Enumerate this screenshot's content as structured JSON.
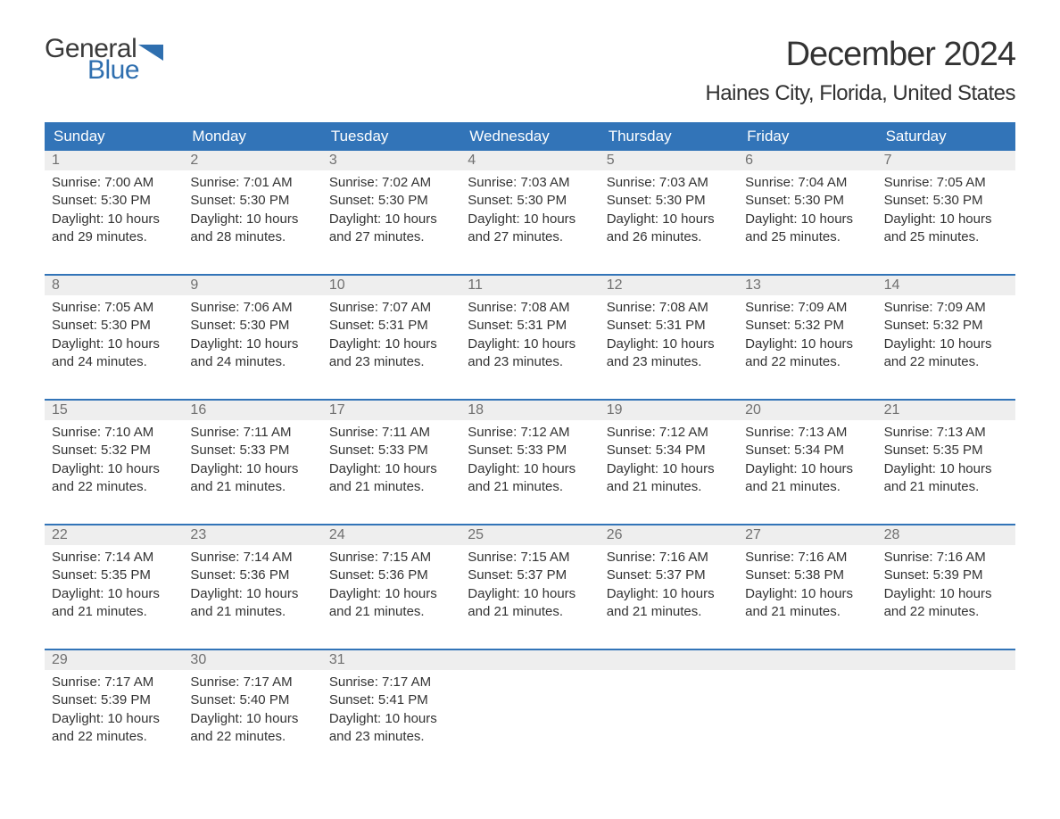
{
  "logo": {
    "word1": "General",
    "word2": "Blue",
    "word1_color": "#3a3a3a",
    "word2_color": "#2f6faf",
    "flag_color": "#2f6faf"
  },
  "title": "December 2024",
  "location": "Haines City, Florida, United States",
  "colors": {
    "header_bg": "#3274b8",
    "header_text": "#ffffff",
    "row_divider": "#3274b8",
    "daynum_bg": "#eeeeee",
    "daynum_text": "#707070",
    "body_text": "#333333",
    "page_bg": "#ffffff"
  },
  "weekdays": [
    "Sunday",
    "Monday",
    "Tuesday",
    "Wednesday",
    "Thursday",
    "Friday",
    "Saturday"
  ],
  "weeks": [
    [
      {
        "n": "1",
        "sunrise": "Sunrise: 7:00 AM",
        "sunset": "Sunset: 5:30 PM",
        "d1": "Daylight: 10 hours",
        "d2": "and 29 minutes."
      },
      {
        "n": "2",
        "sunrise": "Sunrise: 7:01 AM",
        "sunset": "Sunset: 5:30 PM",
        "d1": "Daylight: 10 hours",
        "d2": "and 28 minutes."
      },
      {
        "n": "3",
        "sunrise": "Sunrise: 7:02 AM",
        "sunset": "Sunset: 5:30 PM",
        "d1": "Daylight: 10 hours",
        "d2": "and 27 minutes."
      },
      {
        "n": "4",
        "sunrise": "Sunrise: 7:03 AM",
        "sunset": "Sunset: 5:30 PM",
        "d1": "Daylight: 10 hours",
        "d2": "and 27 minutes."
      },
      {
        "n": "5",
        "sunrise": "Sunrise: 7:03 AM",
        "sunset": "Sunset: 5:30 PM",
        "d1": "Daylight: 10 hours",
        "d2": "and 26 minutes."
      },
      {
        "n": "6",
        "sunrise": "Sunrise: 7:04 AM",
        "sunset": "Sunset: 5:30 PM",
        "d1": "Daylight: 10 hours",
        "d2": "and 25 minutes."
      },
      {
        "n": "7",
        "sunrise": "Sunrise: 7:05 AM",
        "sunset": "Sunset: 5:30 PM",
        "d1": "Daylight: 10 hours",
        "d2": "and 25 minutes."
      }
    ],
    [
      {
        "n": "8",
        "sunrise": "Sunrise: 7:05 AM",
        "sunset": "Sunset: 5:30 PM",
        "d1": "Daylight: 10 hours",
        "d2": "and 24 minutes."
      },
      {
        "n": "9",
        "sunrise": "Sunrise: 7:06 AM",
        "sunset": "Sunset: 5:30 PM",
        "d1": "Daylight: 10 hours",
        "d2": "and 24 minutes."
      },
      {
        "n": "10",
        "sunrise": "Sunrise: 7:07 AM",
        "sunset": "Sunset: 5:31 PM",
        "d1": "Daylight: 10 hours",
        "d2": "and 23 minutes."
      },
      {
        "n": "11",
        "sunrise": "Sunrise: 7:08 AM",
        "sunset": "Sunset: 5:31 PM",
        "d1": "Daylight: 10 hours",
        "d2": "and 23 minutes."
      },
      {
        "n": "12",
        "sunrise": "Sunrise: 7:08 AM",
        "sunset": "Sunset: 5:31 PM",
        "d1": "Daylight: 10 hours",
        "d2": "and 23 minutes."
      },
      {
        "n": "13",
        "sunrise": "Sunrise: 7:09 AM",
        "sunset": "Sunset: 5:32 PM",
        "d1": "Daylight: 10 hours",
        "d2": "and 22 minutes."
      },
      {
        "n": "14",
        "sunrise": "Sunrise: 7:09 AM",
        "sunset": "Sunset: 5:32 PM",
        "d1": "Daylight: 10 hours",
        "d2": "and 22 minutes."
      }
    ],
    [
      {
        "n": "15",
        "sunrise": "Sunrise: 7:10 AM",
        "sunset": "Sunset: 5:32 PM",
        "d1": "Daylight: 10 hours",
        "d2": "and 22 minutes."
      },
      {
        "n": "16",
        "sunrise": "Sunrise: 7:11 AM",
        "sunset": "Sunset: 5:33 PM",
        "d1": "Daylight: 10 hours",
        "d2": "and 21 minutes."
      },
      {
        "n": "17",
        "sunrise": "Sunrise: 7:11 AM",
        "sunset": "Sunset: 5:33 PM",
        "d1": "Daylight: 10 hours",
        "d2": "and 21 minutes."
      },
      {
        "n": "18",
        "sunrise": "Sunrise: 7:12 AM",
        "sunset": "Sunset: 5:33 PM",
        "d1": "Daylight: 10 hours",
        "d2": "and 21 minutes."
      },
      {
        "n": "19",
        "sunrise": "Sunrise: 7:12 AM",
        "sunset": "Sunset: 5:34 PM",
        "d1": "Daylight: 10 hours",
        "d2": "and 21 minutes."
      },
      {
        "n": "20",
        "sunrise": "Sunrise: 7:13 AM",
        "sunset": "Sunset: 5:34 PM",
        "d1": "Daylight: 10 hours",
        "d2": "and 21 minutes."
      },
      {
        "n": "21",
        "sunrise": "Sunrise: 7:13 AM",
        "sunset": "Sunset: 5:35 PM",
        "d1": "Daylight: 10 hours",
        "d2": "and 21 minutes."
      }
    ],
    [
      {
        "n": "22",
        "sunrise": "Sunrise: 7:14 AM",
        "sunset": "Sunset: 5:35 PM",
        "d1": "Daylight: 10 hours",
        "d2": "and 21 minutes."
      },
      {
        "n": "23",
        "sunrise": "Sunrise: 7:14 AM",
        "sunset": "Sunset: 5:36 PM",
        "d1": "Daylight: 10 hours",
        "d2": "and 21 minutes."
      },
      {
        "n": "24",
        "sunrise": "Sunrise: 7:15 AM",
        "sunset": "Sunset: 5:36 PM",
        "d1": "Daylight: 10 hours",
        "d2": "and 21 minutes."
      },
      {
        "n": "25",
        "sunrise": "Sunrise: 7:15 AM",
        "sunset": "Sunset: 5:37 PM",
        "d1": "Daylight: 10 hours",
        "d2": "and 21 minutes."
      },
      {
        "n": "26",
        "sunrise": "Sunrise: 7:16 AM",
        "sunset": "Sunset: 5:37 PM",
        "d1": "Daylight: 10 hours",
        "d2": "and 21 minutes."
      },
      {
        "n": "27",
        "sunrise": "Sunrise: 7:16 AM",
        "sunset": "Sunset: 5:38 PM",
        "d1": "Daylight: 10 hours",
        "d2": "and 21 minutes."
      },
      {
        "n": "28",
        "sunrise": "Sunrise: 7:16 AM",
        "sunset": "Sunset: 5:39 PM",
        "d1": "Daylight: 10 hours",
        "d2": "and 22 minutes."
      }
    ],
    [
      {
        "n": "29",
        "sunrise": "Sunrise: 7:17 AM",
        "sunset": "Sunset: 5:39 PM",
        "d1": "Daylight: 10 hours",
        "d2": "and 22 minutes."
      },
      {
        "n": "30",
        "sunrise": "Sunrise: 7:17 AM",
        "sunset": "Sunset: 5:40 PM",
        "d1": "Daylight: 10 hours",
        "d2": "and 22 minutes."
      },
      {
        "n": "31",
        "sunrise": "Sunrise: 7:17 AM",
        "sunset": "Sunset: 5:41 PM",
        "d1": "Daylight: 10 hours",
        "d2": "and 23 minutes."
      },
      null,
      null,
      null,
      null
    ]
  ]
}
